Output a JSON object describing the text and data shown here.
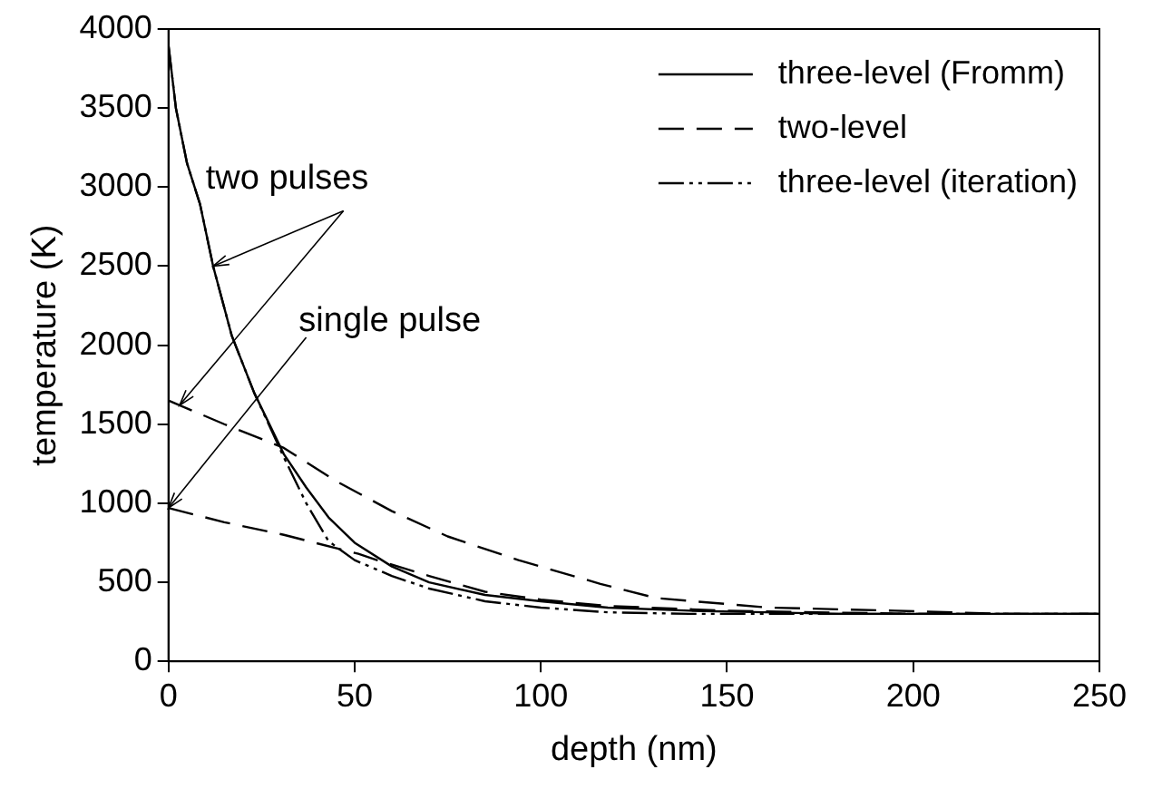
{
  "chart_data": {
    "type": "line",
    "xlabel": "depth (nm)",
    "ylabel": "temperature (K)",
    "xlim": [
      0,
      250
    ],
    "xticks": [
      0,
      50,
      100,
      150,
      200,
      250
    ],
    "ylim": [
      0,
      4000
    ],
    "yticks": [
      0,
      500,
      1000,
      1500,
      2000,
      2500,
      3000,
      3500,
      4000
    ],
    "grid": false,
    "legend": "top right",
    "marker": "none",
    "annotations": [
      {
        "text": "two pulses",
        "x": 12,
        "y": 2500
      },
      {
        "text": "single pulse",
        "x": 0,
        "y": 970
      }
    ],
    "series": [
      {
        "name": "three-level (Fromm)",
        "color": "#000000",
        "line_style": "solid",
        "x": [
          0,
          2,
          5,
          8.5,
          12,
          17,
          23,
          31,
          37,
          43,
          50,
          60,
          70,
          85,
          100,
          118,
          140,
          160,
          180,
          200,
          225,
          250
        ],
        "values": [
          3900,
          3500,
          3150,
          2890,
          2500,
          2060,
          1700,
          1310,
          1100,
          910,
          750,
          600,
          500,
          420,
          380,
          340,
          320,
          310,
          300,
          300,
          300,
          300
        ]
      },
      {
        "name": "two-level",
        "color": "#000000",
        "line_style": "dashed",
        "x": [
          0,
          15,
          31,
          45,
          60,
          75,
          94,
          116,
          131,
          161,
          195,
          225,
          250
        ],
        "values": [
          1650,
          1500,
          1350,
          1140,
          950,
          790,
          640,
          490,
          400,
          340,
          320,
          300,
          300
        ]
      },
      {
        "name": "three-level (iteration)",
        "color": "#000000",
        "line_style": "dashdot",
        "x": [
          0,
          2,
          5,
          8.5,
          12,
          17,
          23,
          31,
          37,
          43,
          50,
          60,
          70,
          85,
          100,
          118,
          140,
          160,
          200,
          250
        ],
        "values": [
          3900,
          3500,
          3150,
          2890,
          2500,
          2060,
          1700,
          1290,
          1000,
          760,
          640,
          540,
          460,
          380,
          340,
          310,
          300,
          300,
          300,
          300
        ]
      },
      {
        "color": "#000000",
        "line_style": "dashed",
        "x": [
          0,
          15,
          31,
          51,
          56,
          70,
          85,
          100,
          118,
          150,
          200,
          250
        ],
        "values": [
          970,
          880,
          800,
          680,
          640,
          540,
          440,
          390,
          350,
          320,
          300,
          300
        ]
      }
    ]
  }
}
